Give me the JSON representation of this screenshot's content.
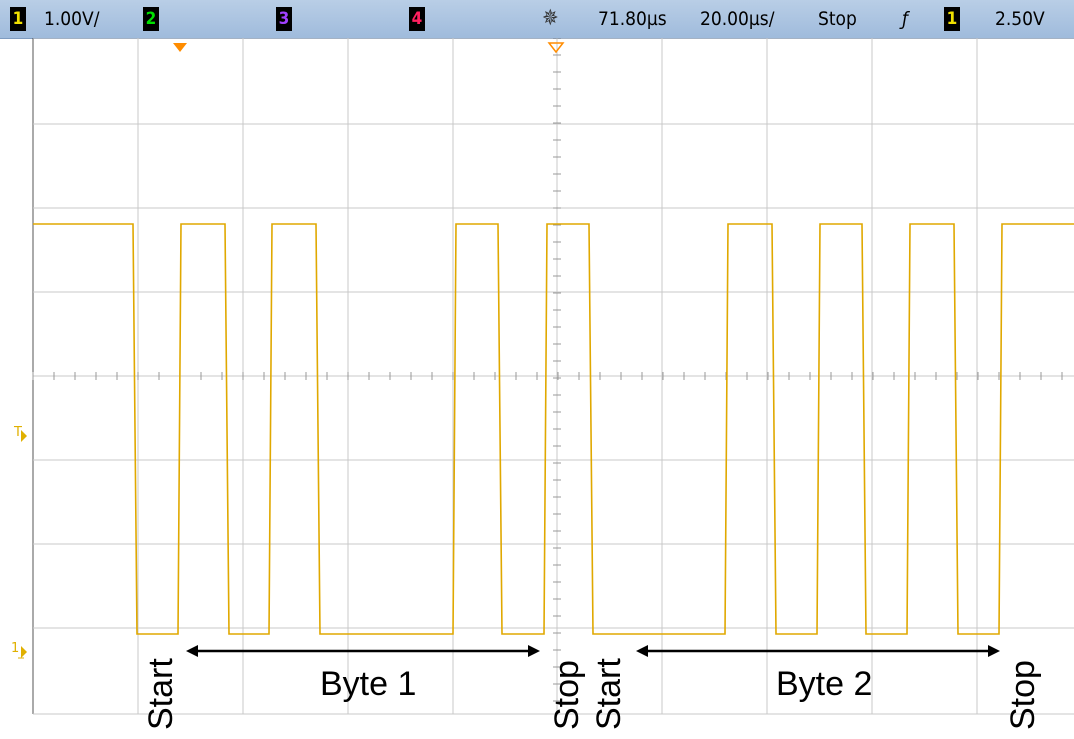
{
  "status_bar": {
    "channel1": {
      "number": "1",
      "color": "#f0e000",
      "scale": "1.00V/"
    },
    "channel2": {
      "number": "2",
      "color": "#00e000"
    },
    "channel3": {
      "number": "3",
      "color": "#a040ff"
    },
    "channel4": {
      "number": "4",
      "color": "#ff2060"
    },
    "acquire_icon": "sunburst-icon",
    "time_delay": "71.80µs",
    "time_scale": "20.00µs/",
    "run_state": "Stop",
    "trigger_slope_symbol": "ƒ",
    "trigger_source": "1",
    "trigger_level": "2.50V"
  },
  "markers": {
    "trigger_level": "T",
    "ground_ch1": "1"
  },
  "annotations": {
    "start1": "Start",
    "byte1": "Byte 1",
    "stop1": "Stop",
    "start2": "Start",
    "byte2": "Byte 2",
    "stop2": "Stop"
  },
  "colors": {
    "trace": "#e0a800",
    "grid": "#c8c8c8",
    "status_bg": "#a8c4e2"
  }
}
